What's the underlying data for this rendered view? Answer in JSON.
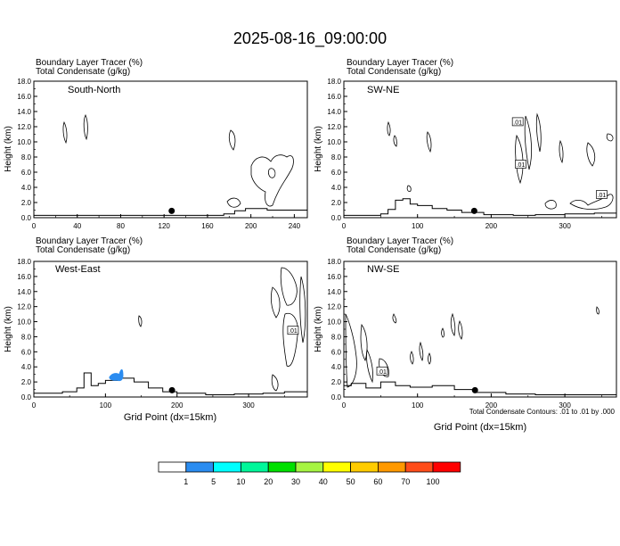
{
  "title": "2025-08-16_09:00:00",
  "footnote": "Total Condensate Contours: .01 to .01 by .000",
  "colorbar": {
    "colors": [
      "#ffffff",
      "#2a8cf0",
      "#00ffff",
      "#00f79a",
      "#00e000",
      "#a6f542",
      "#ffff00",
      "#ffcc00",
      "#ff9900",
      "#ff4d1a",
      "#ff0000"
    ],
    "labels": [
      "1",
      "5",
      "10",
      "20",
      "30",
      "40",
      "50",
      "60",
      "70",
      "100"
    ]
  },
  "chart_data": [
    {
      "type": "contour",
      "panel": "South-North",
      "field_title_1": "Boundary Layer Tracer   (%)",
      "field_title_2": "Total Condensate   (g/kg)",
      "xlabel": "",
      "ylabel": "Height (km)",
      "xlim": [
        0,
        252
      ],
      "ylim": [
        0,
        18
      ],
      "xticks": [
        0,
        40,
        80,
        120,
        160,
        200,
        240
      ],
      "yticks": [
        "0.0",
        "2.0",
        "4.0",
        "6.0",
        "8.0",
        "10.0",
        "12.0",
        "14.0",
        "16.0",
        "18.0"
      ],
      "marker": [
        127,
        0.9
      ],
      "terrain": [
        [
          0,
          0.3
        ],
        [
          40,
          0.3
        ],
        [
          80,
          0.3
        ],
        [
          115,
          0.3
        ],
        [
          135,
          0.3
        ],
        [
          160,
          0.3
        ],
        [
          175,
          0.5
        ],
        [
          185,
          0.9
        ],
        [
          195,
          1.2
        ],
        [
          215,
          1.0
        ],
        [
          235,
          1.0
        ],
        [
          252,
          1.0
        ]
      ],
      "contour_labels": [],
      "shaded": []
    },
    {
      "type": "contour",
      "panel": "SW-NE",
      "field_title_1": "Boundary Layer Tracer   (%)",
      "field_title_2": "Total Condensate   (g/kg)",
      "xlabel": "",
      "ylabel": "Height (km)",
      "xlim": [
        0,
        370
      ],
      "ylim": [
        0,
        18
      ],
      "xticks": [
        0,
        100,
        200,
        300
      ],
      "yticks": [
        "0.0",
        "2.0",
        "4.0",
        "6.0",
        "8.0",
        "10.0",
        "12.0",
        "14.0",
        "16.0",
        "18.0"
      ],
      "marker": [
        177,
        0.9
      ],
      "terrain": [
        [
          0,
          0.3
        ],
        [
          30,
          0.3
        ],
        [
          50,
          0.5
        ],
        [
          60,
          1.1
        ],
        [
          70,
          2.3
        ],
        [
          80,
          2.5
        ],
        [
          90,
          1.8
        ],
        [
          100,
          1.6
        ],
        [
          120,
          1.2
        ],
        [
          140,
          1.0
        ],
        [
          160,
          0.7
        ],
        [
          190,
          0.4
        ],
        [
          230,
          0.3
        ],
        [
          260,
          0.4
        ],
        [
          300,
          0.5
        ],
        [
          340,
          0.6
        ],
        [
          370,
          0.9
        ]
      ],
      "contour_labels": [
        [
          236,
          12.6,
          ".01"
        ],
        [
          240,
          7.0,
          ".01"
        ],
        [
          350,
          3.0,
          ".01"
        ]
      ],
      "shaded": []
    },
    {
      "type": "contour",
      "panel": "West-East",
      "field_title_1": "Boundary Layer Tracer   (%)",
      "field_title_2": "Total Condensate   (g/kg)",
      "xlabel": "Grid Point (dx=15km)",
      "ylabel": "Height (km)",
      "xlim": [
        0,
        382
      ],
      "ylim": [
        0,
        18
      ],
      "xticks": [
        0,
        100,
        200,
        300
      ],
      "yticks": [
        "0.0",
        "2.0",
        "4.0",
        "6.0",
        "8.0",
        "10.0",
        "12.0",
        "14.0",
        "16.0",
        "18.0"
      ],
      "marker": [
        193,
        0.9
      ],
      "terrain": [
        [
          0,
          0.5
        ],
        [
          20,
          0.5
        ],
        [
          40,
          0.7
        ],
        [
          60,
          1.2
        ],
        [
          70,
          3.2
        ],
        [
          80,
          1.5
        ],
        [
          90,
          1.8
        ],
        [
          100,
          2.2
        ],
        [
          120,
          2.5
        ],
        [
          140,
          2.0
        ],
        [
          160,
          1.2
        ],
        [
          180,
          0.7
        ],
        [
          200,
          0.5
        ],
        [
          240,
          0.3
        ],
        [
          280,
          0.4
        ],
        [
          320,
          0.5
        ],
        [
          350,
          0.7
        ],
        [
          382,
          1.0
        ]
      ],
      "contour_labels": [
        [
          362,
          8.8,
          ".01"
        ]
      ],
      "shaded": [
        {
          "range": "1-5",
          "x": [
            105,
            125
          ],
          "y": [
            2.0,
            3.8
          ]
        }
      ]
    },
    {
      "type": "contour",
      "panel": "NW-SE",
      "field_title_1": "Boundary Layer Tracer   (%)",
      "field_title_2": "Total Condensate   (g/kg)",
      "xlabel": "Grid Point (dx=15km)",
      "ylabel": "Height (km)",
      "xlim": [
        0,
        370
      ],
      "ylim": [
        0,
        18
      ],
      "xticks": [
        0,
        100,
        200,
        300
      ],
      "yticks": [
        "0.0",
        "2.0",
        "4.0",
        "6.0",
        "8.0",
        "10.0",
        "12.0",
        "14.0",
        "16.0",
        "18.0"
      ],
      "marker": [
        178,
        0.9
      ],
      "terrain": [
        [
          0,
          1.5
        ],
        [
          10,
          1.8
        ],
        [
          30,
          1.2
        ],
        [
          50,
          2.0
        ],
        [
          70,
          1.5
        ],
        [
          90,
          1.3
        ],
        [
          120,
          1.5
        ],
        [
          150,
          1.0
        ],
        [
          180,
          0.6
        ],
        [
          220,
          0.4
        ],
        [
          260,
          0.3
        ],
        [
          300,
          0.3
        ],
        [
          340,
          0.3
        ],
        [
          370,
          0.4
        ]
      ],
      "contour_labels": [
        [
          52,
          3.4,
          ".01"
        ]
      ],
      "shaded": []
    }
  ]
}
